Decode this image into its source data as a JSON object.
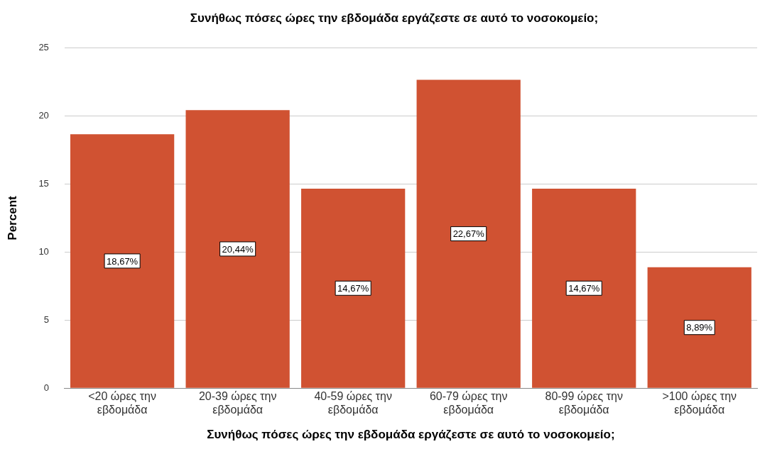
{
  "chart_data": {
    "type": "bar",
    "title": "Συνήθως πόσες ώρες την εβδομάδα εργάζεστε σε αυτό το νοσοκομείο;",
    "xlabel": "Συνήθως πόσες ώρες την εβδομάδα εργάζεστε σε αυτό το νοσοκομείο;",
    "ylabel": "Percent",
    "categories": [
      "<20 ώρες την εβδομάδα",
      "20-39 ώρες την εβδομάδα",
      "40-59 ώρες την εβδομάδα",
      "60-79 ώρες την εβδομάδα",
      "80-99 ώρες την εβδομάδα",
      ">100 ώρες την εβδομάδα"
    ],
    "values": [
      18.67,
      20.44,
      14.67,
      22.67,
      14.67,
      8.89
    ],
    "value_labels": [
      "18,67%",
      "20,44%",
      "14,67%",
      "22,67%",
      "14,67%",
      "8,89%"
    ],
    "color": "#d05232",
    "ylim": [
      0,
      25
    ],
    "yticks": [
      0,
      5,
      10,
      15,
      20,
      25
    ],
    "grid": "y",
    "legend": false
  }
}
